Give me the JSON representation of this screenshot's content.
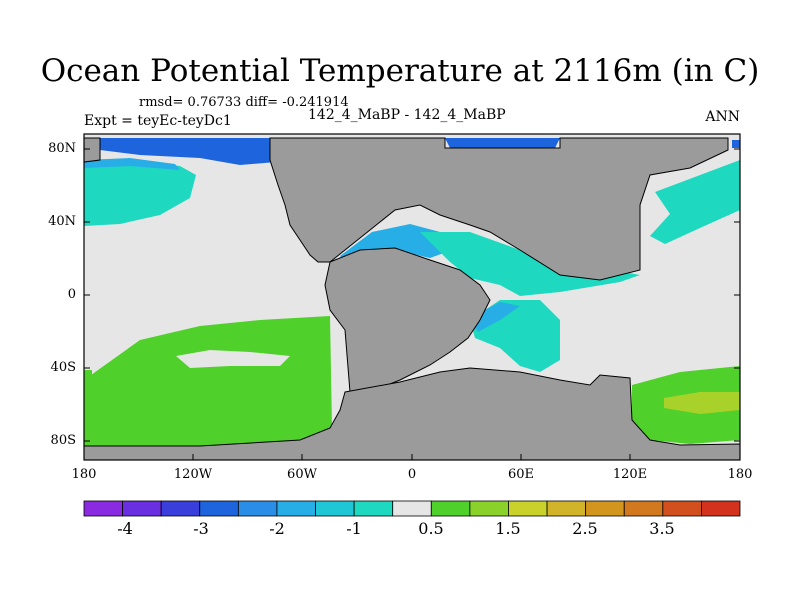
{
  "title": "Ocean Potential Temperature at 2116m (in C)",
  "stats": "rmsd= 0.76733 diff= -0.241914",
  "experiment": "Expt = teyEc-teyDc1",
  "case": "142_4_MaBP - 142_4_MaBP",
  "season": "ANN",
  "lat_ticks": [
    "80N",
    "40N",
    "0",
    "40S",
    "80S"
  ],
  "lon_ticks": [
    "180",
    "120W",
    "60W",
    "0",
    "60E",
    "120E",
    "180"
  ],
  "colorbar": {
    "labels": [
      "-4",
      "-3",
      "-2",
      "-1",
      "0.5",
      "1.5",
      "2.5",
      "3.5"
    ],
    "colors": [
      "#8a2be2",
      "#6a2fe0",
      "#3a3fdc",
      "#1e64dc",
      "#2a8ee6",
      "#27aee6",
      "#1fc6d6",
      "#1ed8c0",
      "#e6e6e6",
      "#4fd02a",
      "#8ad22a",
      "#c8d22a",
      "#d2b42a",
      "#d2961e",
      "#d2781e",
      "#d2501e",
      "#d2321e"
    ]
  },
  "palette": {
    "land": "#9b9b9b",
    "background_field": "#e6e6e6",
    "deep_blue": "#1e64dc",
    "light_blue": "#27aee6",
    "cyan": "#1fd8c0",
    "green": "#4fd02a",
    "yellow_green": "#a8d22a"
  }
}
